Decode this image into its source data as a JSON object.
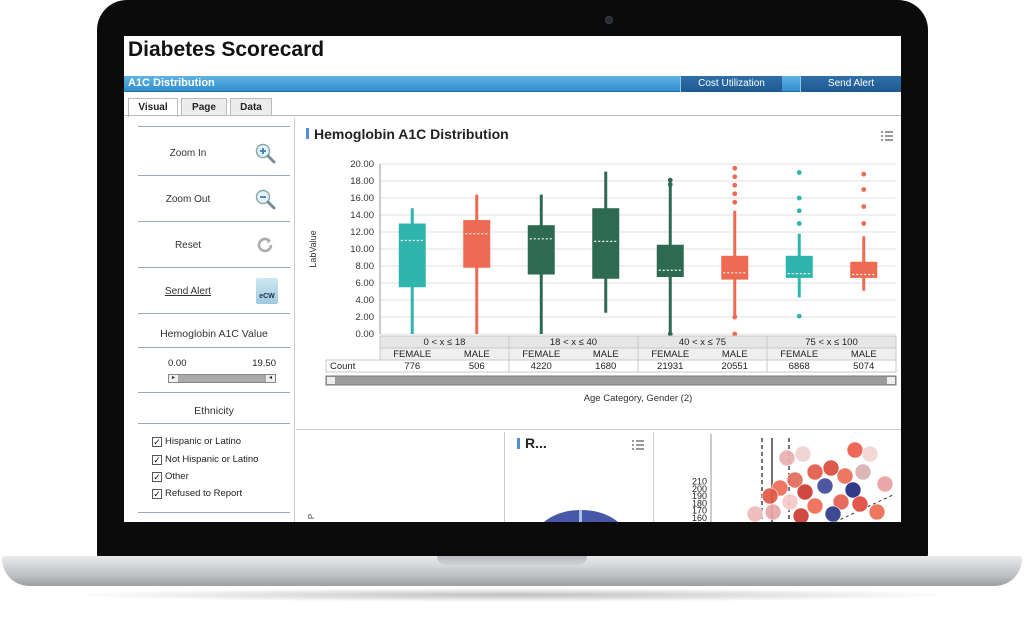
{
  "app": {
    "title": "Diabetes Scorecard"
  },
  "header_bar": {
    "title": "A1C Distribution",
    "buttons": [
      "Cost Utilization",
      "Send Alert"
    ]
  },
  "tabs": [
    "Visual",
    "Page",
    "Data"
  ],
  "left_panel": {
    "zoom_in": "Zoom In",
    "zoom_out": "Zoom Out",
    "reset": "Reset",
    "send_alert": "Send Alert",
    "ecw_label": "eCW",
    "hba1c_title": "Hemoglobin A1C Value",
    "slider_min": "0.00",
    "slider_max": "19.50",
    "ethnicity_title": "Ethnicity",
    "ethnicity_options": [
      "Hispanic or Latino",
      "Not Hispanic or Latino",
      "Other",
      "Refused to Report"
    ]
  },
  "colors": {
    "teal": "#2fb5ae",
    "coral": "#ee6a52",
    "dark_green": "#2e6a52",
    "accent_blue": "#2f8fcc"
  },
  "chart_data": {
    "type": "boxplot",
    "title": "Hemoglobin A1C Distribution",
    "ylabel": "LabValue",
    "xlabel": "Age Category,  Gender (2)",
    "ylim": [
      0,
      20
    ],
    "yticks": [
      "0.00",
      "2.00",
      "4.00",
      "6.00",
      "8.00",
      "10.00",
      "12.00",
      "14.00",
      "16.00",
      "18.00",
      "20.00"
    ],
    "groups": [
      "0 < x ≤ 18",
      "18 < x ≤ 40",
      "40 < x ≤ 75",
      "75 < x ≤ 100"
    ],
    "count_label": "Count",
    "boxes": [
      {
        "group": 0,
        "gender": "FEMALE",
        "count": "776",
        "color": "#2fb5ae",
        "min": 0.0,
        "q1": 5.5,
        "median": 11.0,
        "q3": 13.0,
        "max": 14.8,
        "outliers": []
      },
      {
        "group": 0,
        "gender": "MALE",
        "count": "506",
        "color": "#ee6a52",
        "min": 0.0,
        "q1": 7.8,
        "median": 11.8,
        "q3": 13.4,
        "max": 16.4,
        "outliers": []
      },
      {
        "group": 1,
        "gender": "FEMALE",
        "count": "4220",
        "color": "#2e6a52",
        "min": 0.0,
        "q1": 7.0,
        "median": 11.2,
        "q3": 12.8,
        "max": 16.4,
        "outliers": []
      },
      {
        "group": 1,
        "gender": "MALE",
        "count": "1680",
        "color": "#2e6a52",
        "min": 2.5,
        "q1": 6.5,
        "median": 10.9,
        "q3": 14.8,
        "max": 19.1,
        "outliers": []
      },
      {
        "group": 2,
        "gender": "FEMALE",
        "count": "21931",
        "color": "#2e6a52",
        "min": 0.0,
        "q1": 6.7,
        "median": 7.5,
        "q3": 10.5,
        "max": 17.5,
        "outliers": [
          0.0,
          17.6,
          18.1
        ]
      },
      {
        "group": 2,
        "gender": "MALE",
        "count": "20551",
        "color": "#ee6a52",
        "min": 2.0,
        "q1": 6.4,
        "median": 7.2,
        "q3": 9.2,
        "max": 14.5,
        "outliers": [
          0.0,
          2.0,
          15.5,
          16.5,
          17.5,
          18.5,
          19.5
        ]
      },
      {
        "group": 3,
        "gender": "FEMALE",
        "count": "6868",
        "color": "#2fb5ae",
        "min": 4.3,
        "q1": 6.6,
        "median": 7.1,
        "q3": 9.2,
        "max": 11.8,
        "outliers": [
          2.1,
          13.0,
          14.5,
          16.0,
          19.0
        ]
      },
      {
        "group": 3,
        "gender": "MALE",
        "count": "5074",
        "color": "#ee6a52",
        "min": 5.1,
        "q1": 6.6,
        "median": 7.0,
        "q3": 8.5,
        "max": 11.5,
        "outliers": [
          13.0,
          15.0,
          17.0,
          18.8
        ]
      }
    ]
  },
  "panel2": {
    "title": "R..."
  },
  "scatter_panel": {
    "yticks": [
      "160",
      "170",
      "180",
      "190",
      "200",
      "210"
    ]
  }
}
